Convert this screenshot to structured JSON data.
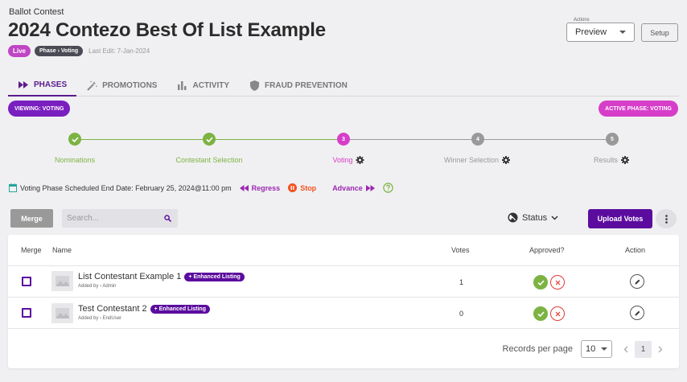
{
  "header": {
    "supertitle": "Ballot Contest",
    "title": "2024 Contezo Best Of List Example",
    "live_badge": "Live",
    "phase_from": "Phase",
    "phase_sep": "›",
    "phase_to": "Voting",
    "last_edit": "Last Edit: 7-Jan-2024"
  },
  "actions": {
    "legend": "Actions",
    "selected": "Preview",
    "setup_label": "Setup"
  },
  "tabs": [
    {
      "label": "PHASES",
      "icon": "fast-forward-icon",
      "active": true
    },
    {
      "label": "PROMOTIONS",
      "icon": "magic-wand-icon",
      "active": false
    },
    {
      "label": "ACTIVITY",
      "icon": "bar-chart-icon",
      "active": false
    },
    {
      "label": "FRAUD PREVENTION",
      "icon": "shield-icon",
      "active": false
    }
  ],
  "viewing_pill": "VIEWING:  VOTING",
  "active_phase_pill": "ACTIVE PHASE:  VOTING",
  "steps": [
    {
      "number": "1",
      "label": "Nominations",
      "state": "done",
      "gear": false
    },
    {
      "number": "2",
      "label": "Contestant Selection",
      "state": "done",
      "gear": false
    },
    {
      "number": "3",
      "label": "Voting",
      "state": "current",
      "gear": true
    },
    {
      "number": "4",
      "label": "Winner Selection",
      "state": "upcoming",
      "gear": true
    },
    {
      "number": "5",
      "label": "Results",
      "state": "upcoming",
      "gear": true
    }
  ],
  "schedule": {
    "text": "Voting Phase Scheduled End Date: February 25, 2024@11:00 pm",
    "regress": "Regress",
    "stop": "Stop",
    "advance": "Advance"
  },
  "toolbar": {
    "merge_label": "Merge",
    "search_placeholder": "Search...",
    "status_label": "Status",
    "upload_label": "Upload Votes"
  },
  "table": {
    "headers": {
      "merge": "Merge",
      "name": "Name",
      "votes": "Votes",
      "approved": "Approved?",
      "action": "Action"
    },
    "rows": [
      {
        "name": "List Contestant Example 1",
        "badge": "+ Enhanced Listing",
        "added_by": "Added by › Admin",
        "votes": "1"
      },
      {
        "name": "Test Contestant 2",
        "badge": "+ Enhanced Listing",
        "added_by": "Added by › EndUser",
        "votes": "0"
      }
    ]
  },
  "pagination": {
    "records_label": "Records per page",
    "per_page": "10",
    "current_page": "1"
  },
  "colors": {
    "brand_purple": "#5b0c9e",
    "done_green": "#7cb342",
    "current_pink": "#d63ec9",
    "upcoming_gray": "#999999",
    "regress_purple": "#9c27b0",
    "stop_orange": "#f4511e"
  }
}
